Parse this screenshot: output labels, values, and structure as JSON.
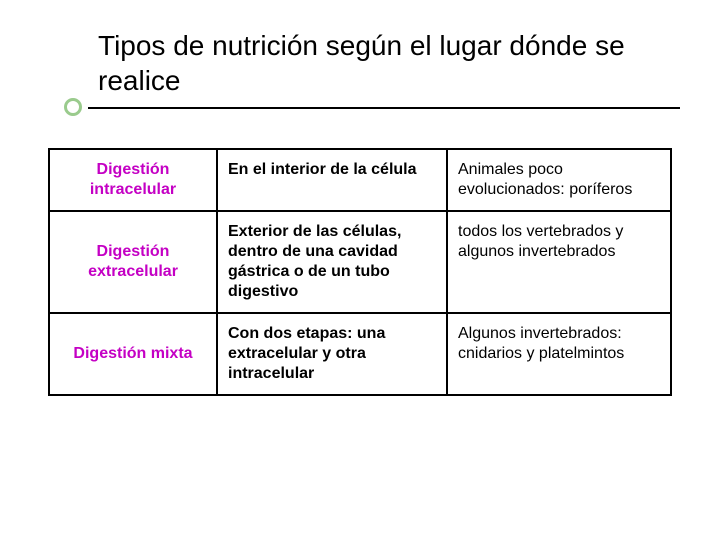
{
  "title": {
    "text": "Tipos de nutrición según el lugar dónde se realice",
    "font_size_pt": 28,
    "color": "#000000"
  },
  "bullet": {
    "ring_color": "#9acb8d",
    "line_color": "#000000"
  },
  "table": {
    "border_color": "#000000",
    "columns": [
      {
        "role": "tipo",
        "width_pct": 27,
        "align": "center",
        "font_weight": "bold",
        "color": "#c400c4"
      },
      {
        "role": "donde",
        "width_pct": 37,
        "align": "left",
        "font_weight": "bold",
        "color": "#000000"
      },
      {
        "role": "ejemplos",
        "width_pct": 36,
        "align": "left",
        "font_weight": "normal",
        "color": "#000000"
      }
    ],
    "rows": [
      {
        "tipo": "Digestión intracelular",
        "donde": "En el interior de la célula",
        "ejemplos": "Animales poco evolucionados: poríferos"
      },
      {
        "tipo": "Digestión extracelular",
        "donde": "Exterior de las células, dentro de una cavidad gástrica o de un tubo digestivo",
        "ejemplos": "todos los vertebrados y algunos invertebrados"
      },
      {
        "tipo": "Digestión mixta",
        "donde": "Con dos etapas: una extracelular y otra intracelular",
        "ejemplos": "Algunos invertebrados: cnidarios y platelmintos"
      }
    ]
  },
  "colors": {
    "page_bg": "#ffffff",
    "type_text": "#c400c4",
    "body_text": "#000000"
  }
}
